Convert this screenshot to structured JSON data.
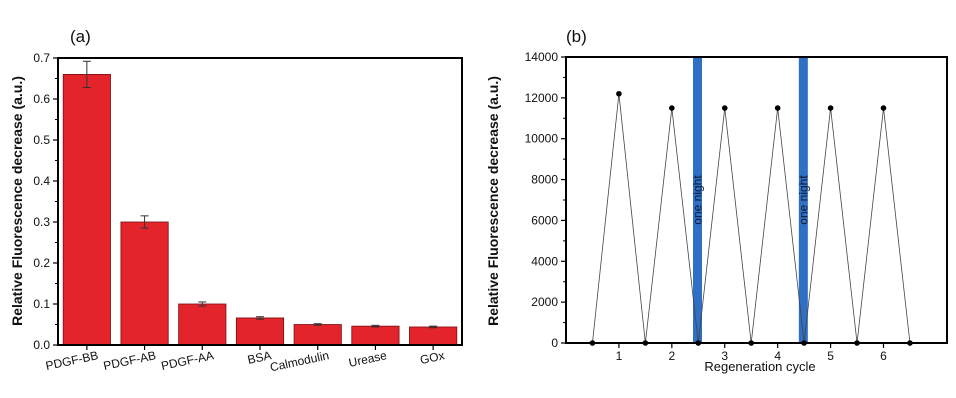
{
  "chart_data": [
    {
      "type": "bar",
      "panel_label": "(a)",
      "title": "",
      "xlabel": "",
      "ylabel": "Relative Fluorescence decrease (a.u.)",
      "categories": [
        "PDGF-BB",
        "PDGF-AB",
        "PDGF-AA",
        "BSA",
        "Calmodulin",
        "Urease",
        "GOx"
      ],
      "values": [
        0.66,
        0.3,
        0.1,
        0.066,
        0.05,
        0.046,
        0.044
      ],
      "errors": [
        0.032,
        0.015,
        0.005,
        0.003,
        0.002,
        0.002,
        0.002
      ],
      "ylim": [
        0,
        0.7
      ],
      "yticks": [
        0.0,
        0.1,
        0.2,
        0.3,
        0.4,
        0.5,
        0.6,
        0.7
      ],
      "ytick_labels": [
        "0.0",
        "0.1",
        "0.2",
        "0.3",
        "0.4",
        "0.5",
        "0.6",
        "0.7"
      ],
      "bar_color": "#e3242b",
      "grid": false
    },
    {
      "type": "line",
      "panel_label": "(b)",
      "title": "",
      "xlabel": "Regeneration cycle",
      "ylabel": "Relative Fluorescence decrease (a.u.)",
      "x": [
        0.5,
        1,
        1.5,
        2,
        2.5,
        3,
        3.5,
        4,
        4.5,
        5,
        5.5,
        6,
        6.5
      ],
      "y": [
        0,
        12200,
        0,
        11500,
        0,
        11500,
        0,
        11500,
        0,
        11500,
        0,
        11500,
        0
      ],
      "xlim": [
        0,
        7.2
      ],
      "xticks": [
        1,
        2,
        3,
        4,
        5,
        6
      ],
      "xtick_labels": [
        "1",
        "2",
        "3",
        "4",
        "5",
        "6"
      ],
      "ylim": [
        0,
        14000
      ],
      "yticks": [
        0,
        2000,
        4000,
        6000,
        8000,
        10000,
        12000,
        14000
      ],
      "ytick_labels": [
        "0",
        "2000",
        "4000",
        "6000",
        "8000",
        "10000",
        "12000",
        "14000"
      ],
      "bands": [
        {
          "x_from": 2.4,
          "x_to": 2.57,
          "label": "one night"
        },
        {
          "x_from": 4.4,
          "x_to": 4.57,
          "label": "one night"
        }
      ],
      "band_color": "#2f6fc6",
      "line_color": "#444444",
      "marker_color": "#000000",
      "grid": false
    }
  ]
}
